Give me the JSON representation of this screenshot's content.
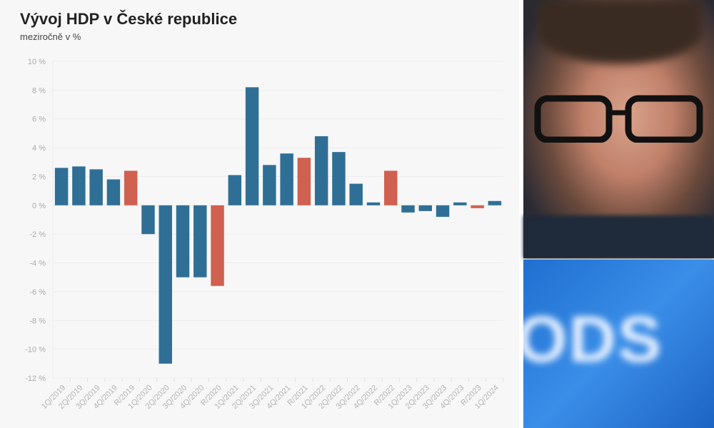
{
  "title": "Vývoj HDP v České republice",
  "subtitle": "meziročně v %",
  "photos": {
    "top": "portrait-photo",
    "bottom_logo_text": "ODS"
  },
  "chart_data": {
    "type": "bar",
    "title": "Vývoj HDP v České republice",
    "subtitle": "meziročně v %",
    "categories": [
      "1Q/2019",
      "2Q/2019",
      "3Q/2019",
      "4Q/2019",
      "R/2019",
      "1Q/2020",
      "2Q/2020",
      "3Q/2020",
      "4Q/2020",
      "R/2020",
      "1Q/2021",
      "2Q/2021",
      "3Q/2021",
      "4Q/2021",
      "R/2021",
      "1Q/2022",
      "2Q/2022",
      "3Q/2022",
      "4Q/2022",
      "R/2022",
      "1Q/2023",
      "2Q/2023",
      "3Q/2023",
      "4Q/2023",
      "R/2023",
      "1Q/2024"
    ],
    "values": [
      2.6,
      2.7,
      2.5,
      1.8,
      2.4,
      -2.0,
      -11.0,
      -5.0,
      -5.0,
      -5.6,
      2.1,
      8.2,
      2.8,
      3.6,
      3.3,
      4.8,
      3.7,
      1.5,
      0.2,
      2.4,
      -0.5,
      -0.4,
      -0.8,
      0.2,
      -0.2,
      0.3
    ],
    "ylim": [
      -12,
      10
    ],
    "yticks": [
      10,
      8,
      6,
      4,
      2,
      0,
      -2,
      -4,
      -6,
      -8,
      -10,
      -12
    ],
    "ytick_labels": [
      "10 %",
      "8 %",
      "6 %",
      "4 %",
      "2 %",
      "0 %",
      "-2 %",
      "-4 %",
      "-6 %",
      "-8 %",
      "-10 %",
      "-12 %"
    ],
    "grid": true,
    "colors": {
      "quarter": "#2f6f96",
      "year": "#d0604f"
    }
  }
}
